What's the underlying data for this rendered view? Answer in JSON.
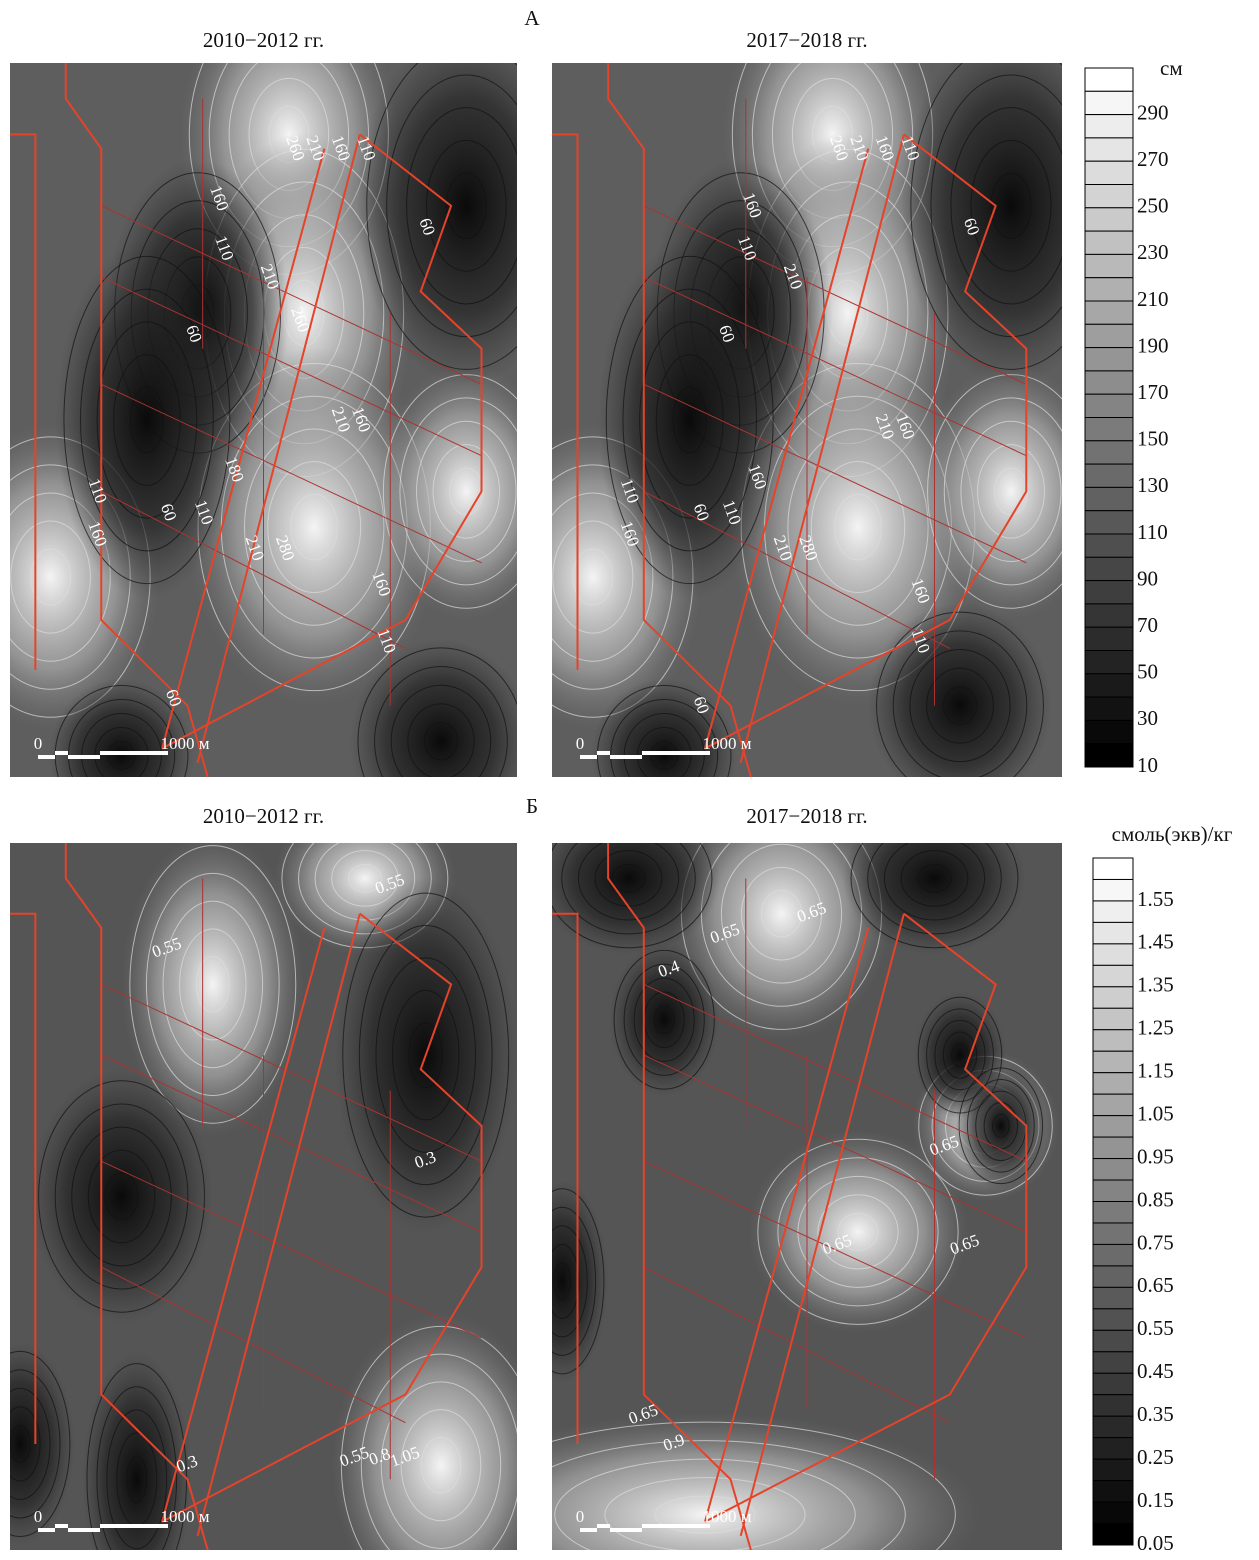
{
  "panels": [
    {
      "letter": "А",
      "unit": "см",
      "legend": [
        "290",
        "270",
        "250",
        "230",
        "210",
        "190",
        "170",
        "150",
        "130",
        "110",
        "90",
        "70",
        "50",
        "30",
        "10"
      ],
      "maps": [
        {
          "period": "2010−2012 гг.",
          "contour_labels": [
            "260",
            "210",
            "160",
            "110",
            "160",
            "110",
            "210",
            "60",
            "260",
            "60",
            "210",
            "160",
            "180",
            "110",
            "160",
            "60",
            "110",
            "210",
            "280",
            "160",
            "110",
            "60"
          ],
          "scale": {
            "zero": "0",
            "length": "1000 м"
          }
        },
        {
          "period": "2017−2018 гг.",
          "contour_labels": [
            "260",
            "210",
            "160",
            "110",
            "160",
            "110",
            "210",
            "60",
            "60",
            "210",
            "160",
            "160",
            "110",
            "160",
            "60",
            "110",
            "210",
            "280",
            "160",
            "110",
            "60"
          ],
          "scale": {
            "zero": "0",
            "length": "1000 м"
          }
        }
      ]
    },
    {
      "letter": "Б",
      "unit": "смоль(экв)/кг",
      "legend": [
        "1.55",
        "1.45",
        "1.35",
        "1.25",
        "1.15",
        "1.05",
        "0.95",
        "0.85",
        "0.75",
        "0.65",
        "0.55",
        "0.45",
        "0.35",
        "0.25",
        "0.15",
        "0.05"
      ],
      "maps": [
        {
          "period": "2010−2012 гг.",
          "contour_labels": [
            "0.55",
            "0.55",
            "0.3",
            "0.3",
            "0.55",
            "0.8",
            "1.05"
          ],
          "scale": {
            "zero": "0",
            "length": "1000 м"
          }
        },
        {
          "period": "2017−2018 гг.",
          "contour_labels": [
            "0.65",
            "0.65",
            "0.4",
            "0.65",
            "0.65",
            "0.65",
            "0.65",
            "0.9"
          ],
          "scale": {
            "zero": "0",
            "length": "1000 м"
          }
        }
      ]
    }
  ]
}
